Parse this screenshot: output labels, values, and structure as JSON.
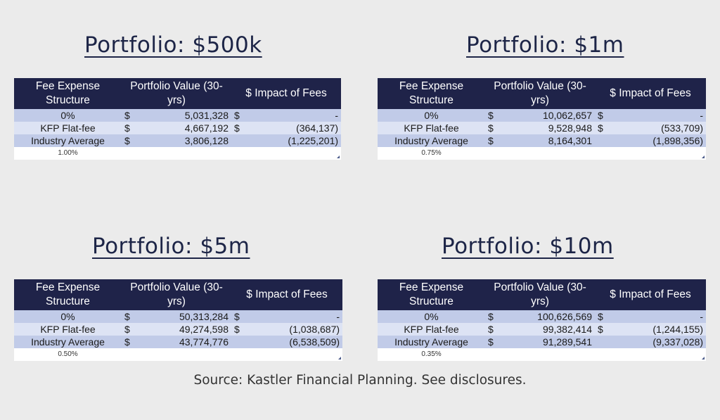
{
  "headers": [
    "Fee Expense Structure",
    "Portfolio Value (30-yrs)",
    "$ Impact of Fees"
  ],
  "panels": [
    {
      "title": "Portfolio:  $500k",
      "rows": [
        {
          "label": "0%",
          "cur1": "$",
          "value": "5,031,328",
          "cur2": "$",
          "impact": "-"
        },
        {
          "label": "KFP Flat-fee",
          "cur1": "$",
          "value": "4,667,192",
          "cur2": "$",
          "impact": "(364,137)"
        },
        {
          "label": "Industry Average",
          "cur1": "$",
          "value": "3,806,128",
          "cur2": "",
          "impact": "(1,225,201)"
        }
      ],
      "rate": "1.00%"
    },
    {
      "title": "Portfolio:  $1m",
      "rows": [
        {
          "label": "0%",
          "cur1": "$",
          "value": "10,062,657",
          "cur2": "$",
          "impact": "-"
        },
        {
          "label": "KFP Flat-fee",
          "cur1": "$",
          "value": "9,528,948",
          "cur2": "$",
          "impact": "(533,709)"
        },
        {
          "label": "Industry Average",
          "cur1": "$",
          "value": "8,164,301",
          "cur2": "",
          "impact": "(1,898,356)"
        }
      ],
      "rate": "0.75%"
    },
    {
      "title": "Portfolio:  $5m",
      "rows": [
        {
          "label": "0%",
          "cur1": "$",
          "value": "50,313,284",
          "cur2": "$",
          "impact": "-"
        },
        {
          "label": "KFP Flat-fee",
          "cur1": "$",
          "value": "49,274,598",
          "cur2": "$",
          "impact": "(1,038,687)"
        },
        {
          "label": "Industry Average",
          "cur1": "$",
          "value": "43,774,776",
          "cur2": "",
          "impact": "(6,538,509)"
        }
      ],
      "rate": "0.50%"
    },
    {
      "title": "Portfolio:  $10m",
      "rows": [
        {
          "label": "0%",
          "cur1": "$",
          "value": "100,626,569",
          "cur2": "$",
          "impact": "-"
        },
        {
          "label": "KFP Flat-fee",
          "cur1": "$",
          "value": "99,382,414",
          "cur2": "$",
          "impact": "(1,244,155)"
        },
        {
          "label": "Industry Average",
          "cur1": "$",
          "value": "91,289,541",
          "cur2": "",
          "impact": "(9,337,028)"
        }
      ],
      "rate": "0.35%"
    }
  ],
  "source": "Source:  Kastler Financial Planning.  See disclosures.",
  "colors": {
    "header_bg": "#1f2349",
    "row_dark": "#c1cbe8",
    "row_light": "#dde3f4",
    "title": "#1d2547",
    "background": "#ebebeb"
  }
}
